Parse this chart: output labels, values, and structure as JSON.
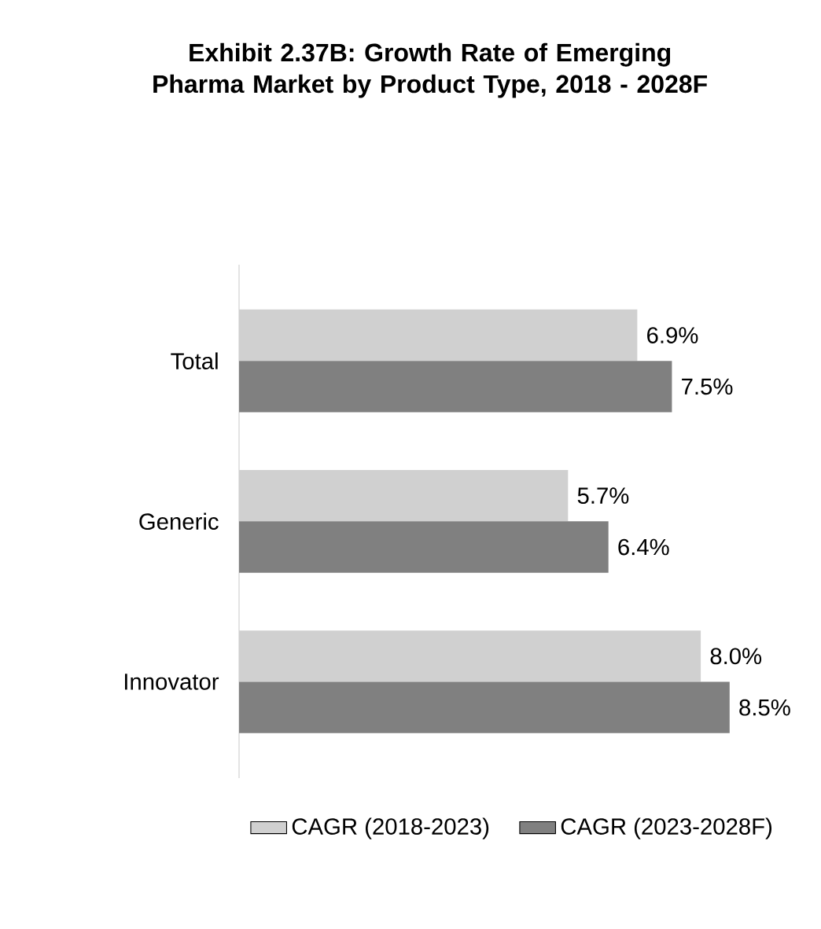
{
  "chart_data": {
    "type": "bar",
    "orientation": "horizontal",
    "title": "Exhibit 2.37B: Growth Rate of Emerging Pharma Market by Product Type, 2018 - 2028F",
    "categories": [
      "Total",
      "Generic",
      "Innovator"
    ],
    "series": [
      {
        "name": "CAGR (2018-2023)",
        "color": "#d0d0d0",
        "values": [
          6.9,
          5.7,
          8.0
        ],
        "value_labels": [
          "6.9%",
          "5.7%",
          "8.0%"
        ]
      },
      {
        "name": "CAGR (2023-2028F)",
        "color": "#808080",
        "values": [
          7.5,
          6.4,
          8.5
        ],
        "value_labels": [
          "7.5%",
          "6.4%",
          "8.5%"
        ]
      }
    ],
    "legend": "bottom"
  }
}
